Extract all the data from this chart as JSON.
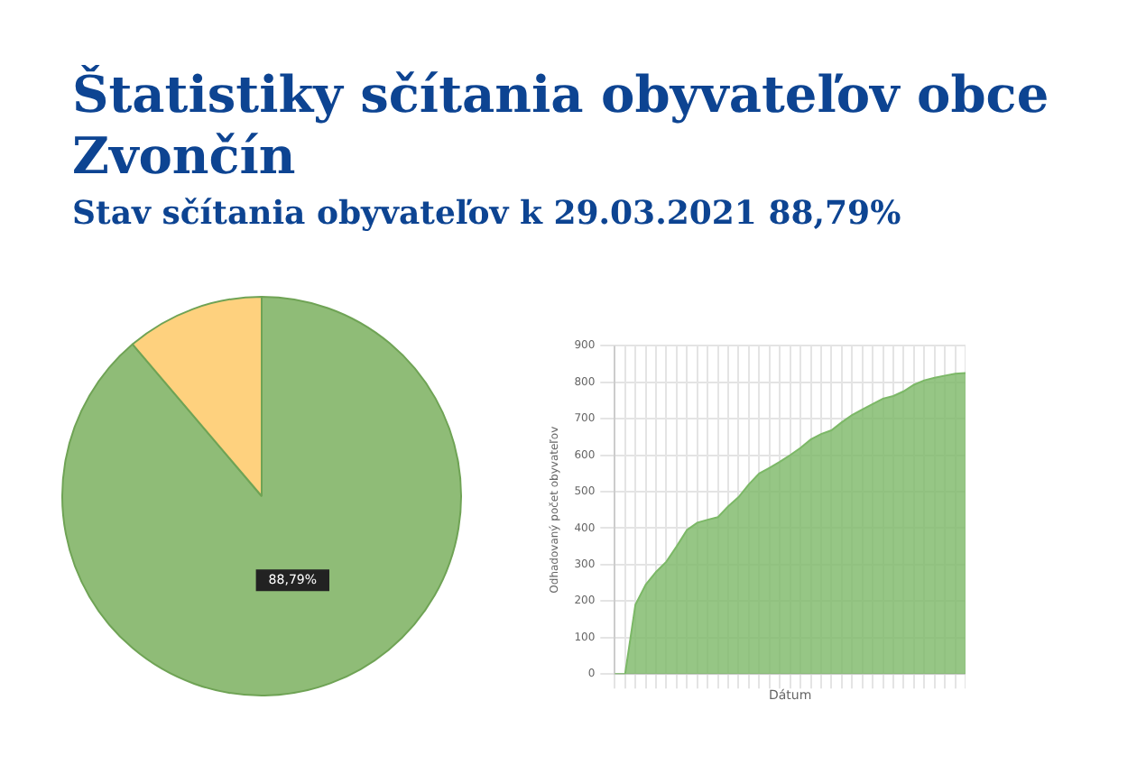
{
  "chart_data": [
    {
      "type": "pie",
      "title": "Štatistiky sčítania obyvateľov obce Zvončín",
      "subtitle": "Stav sčítania obyvateľov k 29.03.2021 88,79%",
      "categories": [
        null,
        null
      ],
      "values": [
        88.79,
        11.21
      ],
      "colors": [
        "#8fbc77",
        "#fed17e"
      ],
      "value_labels": [
        "88,79%",
        null
      ],
      "legend": false
    },
    {
      "type": "area",
      "xlabel": "Dátum",
      "ylabel": "Odhadovaný počet obyvateľov",
      "categories": [
        null,
        null,
        null,
        null,
        null,
        null,
        null,
        null,
        null,
        null,
        null,
        null,
        null,
        null,
        null,
        null,
        null,
        null,
        null,
        null,
        null,
        null,
        null,
        null,
        null,
        null,
        null,
        null,
        null,
        null,
        null,
        null,
        null,
        null,
        null
      ],
      "series": [
        {
          "color": "#7cb867",
          "values": [
            0,
            0,
            190,
            245,
            280,
            308,
            350,
            395,
            415,
            423,
            430,
            460,
            485,
            520,
            550,
            565,
            582,
            600,
            620,
            643,
            658,
            668,
            690,
            710,
            725,
            740,
            755,
            762,
            775,
            793,
            805,
            812,
            818,
            823,
            825
          ]
        }
      ],
      "ylim": [
        0,
        900
      ],
      "yticks": [
        0,
        100,
        200,
        300,
        400,
        500,
        600,
        700,
        800,
        900
      ],
      "grid": true,
      "legend": false
    }
  ]
}
